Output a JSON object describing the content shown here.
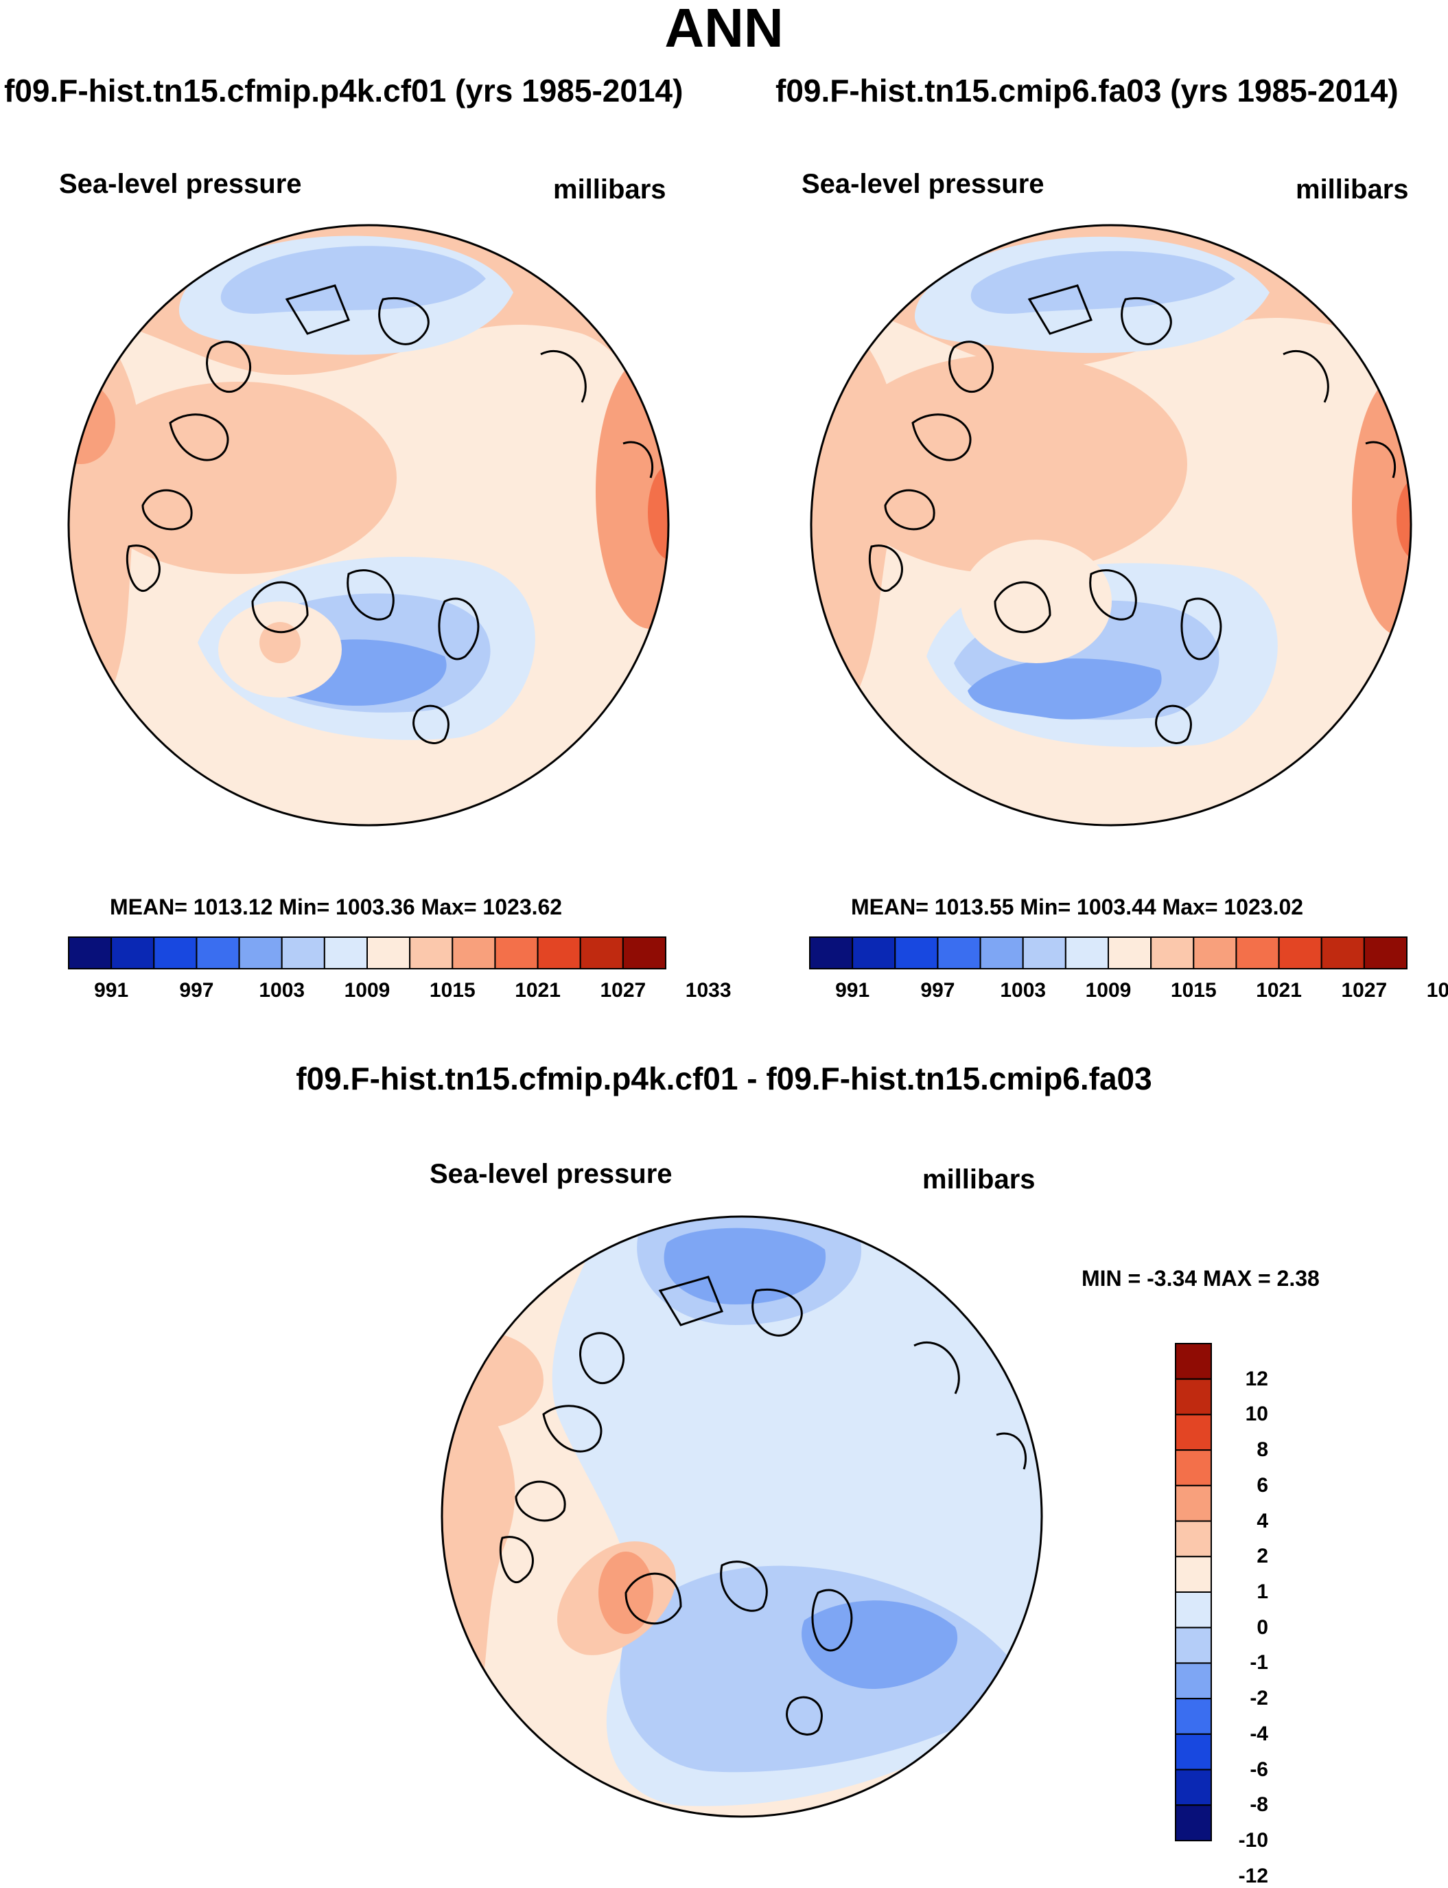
{
  "main_title": "ANN",
  "panels": [
    {
      "case_title": "f09.F-hist.tn15.cfmip.p4k.cf01 (yrs 1985-2014)",
      "variable": "Sea-level pressure",
      "units": "millibars",
      "stats": "MEAN= 1013.12  Min= 1003.36  Max= 1023.62",
      "mean": 1013.12,
      "min": 1003.36,
      "max": 1023.62
    },
    {
      "case_title": "f09.F-hist.tn15.cmip6.fa03 (yrs 1985-2014)",
      "variable": "Sea-level pressure",
      "units": "millibars",
      "stats": "MEAN= 1013.55  Min= 1003.44  Max= 1023.02",
      "mean": 1013.55,
      "min": 1003.44,
      "max": 1023.02
    }
  ],
  "abs_colorbar": {
    "colors": [
      "#08107a",
      "#0a28b4",
      "#1848e0",
      "#3a6ef0",
      "#7ea6f4",
      "#b4cdf8",
      "#dae9fb",
      "#fdebdc",
      "#fbc8ac",
      "#f8a07c",
      "#f3704a",
      "#e34524",
      "#c02a10",
      "#900c04"
    ],
    "labels": [
      "991",
      "997",
      "1003",
      "1009",
      "1015",
      "1021",
      "1027",
      "1033"
    ]
  },
  "diff_panel": {
    "title": "f09.F-hist.tn15.cfmip.p4k.cf01 - f09.F-hist.tn15.cmip6.fa03",
    "variable": "Sea-level pressure",
    "units": "millibars",
    "stats": "MIN =  -3.34 MAX =   2.38",
    "min": -3.34,
    "max": 2.38
  },
  "diff_colorbar": {
    "colors": [
      "#900c04",
      "#c02a10",
      "#e34524",
      "#f3704a",
      "#f8a07c",
      "#fbc8ac",
      "#fdebdc",
      "#dae9fb",
      "#b4cdf8",
      "#7ea6f4",
      "#3a6ef0",
      "#1848e0",
      "#0a28b4",
      "#08107a"
    ],
    "labels": [
      "12",
      "10",
      "8",
      "6",
      "4",
      "2",
      "1",
      "0",
      "-1",
      "-2",
      "-4",
      "-6",
      "-8",
      "-10",
      "-12"
    ]
  }
}
